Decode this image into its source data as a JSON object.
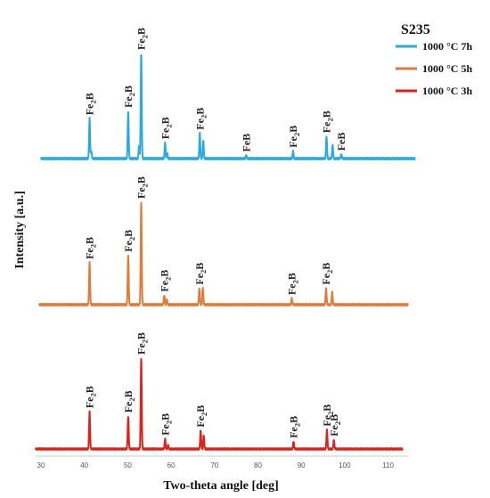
{
  "chart_data": {
    "type": "line",
    "title": "S235",
    "xlabel": "Two-theta angle [deg]",
    "ylabel": "Intensity [a.u.]",
    "xlim": [
      30,
      115
    ],
    "x_ticks": [
      30,
      40,
      50,
      60,
      70,
      80,
      90,
      100,
      110
    ],
    "legend_position": "top-right",
    "grid": false,
    "series": [
      {
        "name": "1000 °C 7h",
        "color": "#29abe2",
        "peaks": [
          {
            "x": 41.2,
            "h": 0.38
          },
          {
            "x": 41.6,
            "h": 0.07
          },
          {
            "x": 50.1,
            "h": 0.45
          },
          {
            "x": 52.6,
            "h": 0.12
          },
          {
            "x": 53.1,
            "h": 1.0
          },
          {
            "x": 58.6,
            "h": 0.15
          },
          {
            "x": 59.1,
            "h": 0.05
          },
          {
            "x": 66.6,
            "h": 0.24
          },
          {
            "x": 67.4,
            "h": 0.17
          },
          {
            "x": 77.3,
            "h": 0.03
          },
          {
            "x": 88.1,
            "h": 0.07
          },
          {
            "x": 95.8,
            "h": 0.21
          },
          {
            "x": 97.2,
            "h": 0.13
          },
          {
            "x": 99.2,
            "h": 0.04
          }
        ],
        "labels": [
          {
            "x": 41.2,
            "text": "Fe",
            "sub": "2",
            "tail": "B"
          },
          {
            "x": 50.1,
            "text": "Fe",
            "sub": "2",
            "tail": "B"
          },
          {
            "x": 53.1,
            "text": "Fe",
            "sub": "2",
            "tail": "B"
          },
          {
            "x": 58.6,
            "text": "Fe",
            "sub": "2",
            "tail": "B"
          },
          {
            "x": 66.6,
            "text": "Fe",
            "sub": "2",
            "tail": "B"
          },
          {
            "x": 77.3,
            "text": "FeB",
            "sub": "",
            "tail": ""
          },
          {
            "x": 88.1,
            "text": "Fe",
            "sub": "2",
            "tail": "B"
          },
          {
            "x": 95.8,
            "text": "Fe",
            "sub": "2",
            "tail": "B"
          },
          {
            "x": 99.2,
            "text": "FeB",
            "sub": "",
            "tail": ""
          }
        ]
      },
      {
        "name": "1000 °C 5h",
        "color": "#e07b39",
        "peaks": [
          {
            "x": 41.2,
            "h": 0.41
          },
          {
            "x": 50.1,
            "h": 0.48
          },
          {
            "x": 53.1,
            "h": 1.0
          },
          {
            "x": 58.4,
            "h": 0.09
          },
          {
            "x": 59.0,
            "h": 0.05
          },
          {
            "x": 66.5,
            "h": 0.16
          },
          {
            "x": 67.3,
            "h": 0.16
          },
          {
            "x": 87.8,
            "h": 0.06
          },
          {
            "x": 95.7,
            "h": 0.16
          },
          {
            "x": 97.1,
            "h": 0.12
          }
        ],
        "labels": [
          {
            "x": 41.2,
            "text": "Fe",
            "sub": "2",
            "tail": "B"
          },
          {
            "x": 50.1,
            "text": "Fe",
            "sub": "2",
            "tail": "B"
          },
          {
            "x": 53.1,
            "text": "Fe",
            "sub": "2",
            "tail": "B"
          },
          {
            "x": 58.4,
            "text": "Fe",
            "sub": "2",
            "tail": "B"
          },
          {
            "x": 66.5,
            "text": "Fe",
            "sub": "2",
            "tail": "B"
          },
          {
            "x": 87.8,
            "text": "Fe",
            "sub": "2",
            "tail": "B"
          },
          {
            "x": 95.7,
            "text": "Fe",
            "sub": "2",
            "tail": "B"
          }
        ]
      },
      {
        "name": "1000 °C 3h",
        "color": "#e0201b",
        "peaks": [
          {
            "x": 41.2,
            "h": 0.41
          },
          {
            "x": 50.1,
            "h": 0.36
          },
          {
            "x": 53.1,
            "h": 1.0
          },
          {
            "x": 58.6,
            "h": 0.11
          },
          {
            "x": 59.3,
            "h": 0.04
          },
          {
            "x": 66.8,
            "h": 0.2
          },
          {
            "x": 67.5,
            "h": 0.15
          },
          {
            "x": 88.2,
            "h": 0.08
          },
          {
            "x": 95.9,
            "h": 0.21
          },
          {
            "x": 97.5,
            "h": 0.1
          }
        ],
        "labels": [
          {
            "x": 41.2,
            "text": "Fe",
            "sub": "2",
            "tail": "B"
          },
          {
            "x": 50.1,
            "text": "Fe",
            "sub": "2",
            "tail": "B"
          },
          {
            "x": 53.1,
            "text": "Fe",
            "sub": "2",
            "tail": "B"
          },
          {
            "x": 58.6,
            "text": "Fe",
            "sub": "2",
            "tail": "B"
          },
          {
            "x": 66.8,
            "text": "Fe",
            "sub": "2",
            "tail": "B"
          },
          {
            "x": 88.2,
            "text": "Fe",
            "sub": "2",
            "tail": "B"
          },
          {
            "x": 95.9,
            "text": "Fe",
            "sub": "2",
            "tail": "B"
          },
          {
            "x": 97.5,
            "text": "Fe",
            "sub": "2",
            "tail": "B"
          }
        ]
      }
    ]
  }
}
